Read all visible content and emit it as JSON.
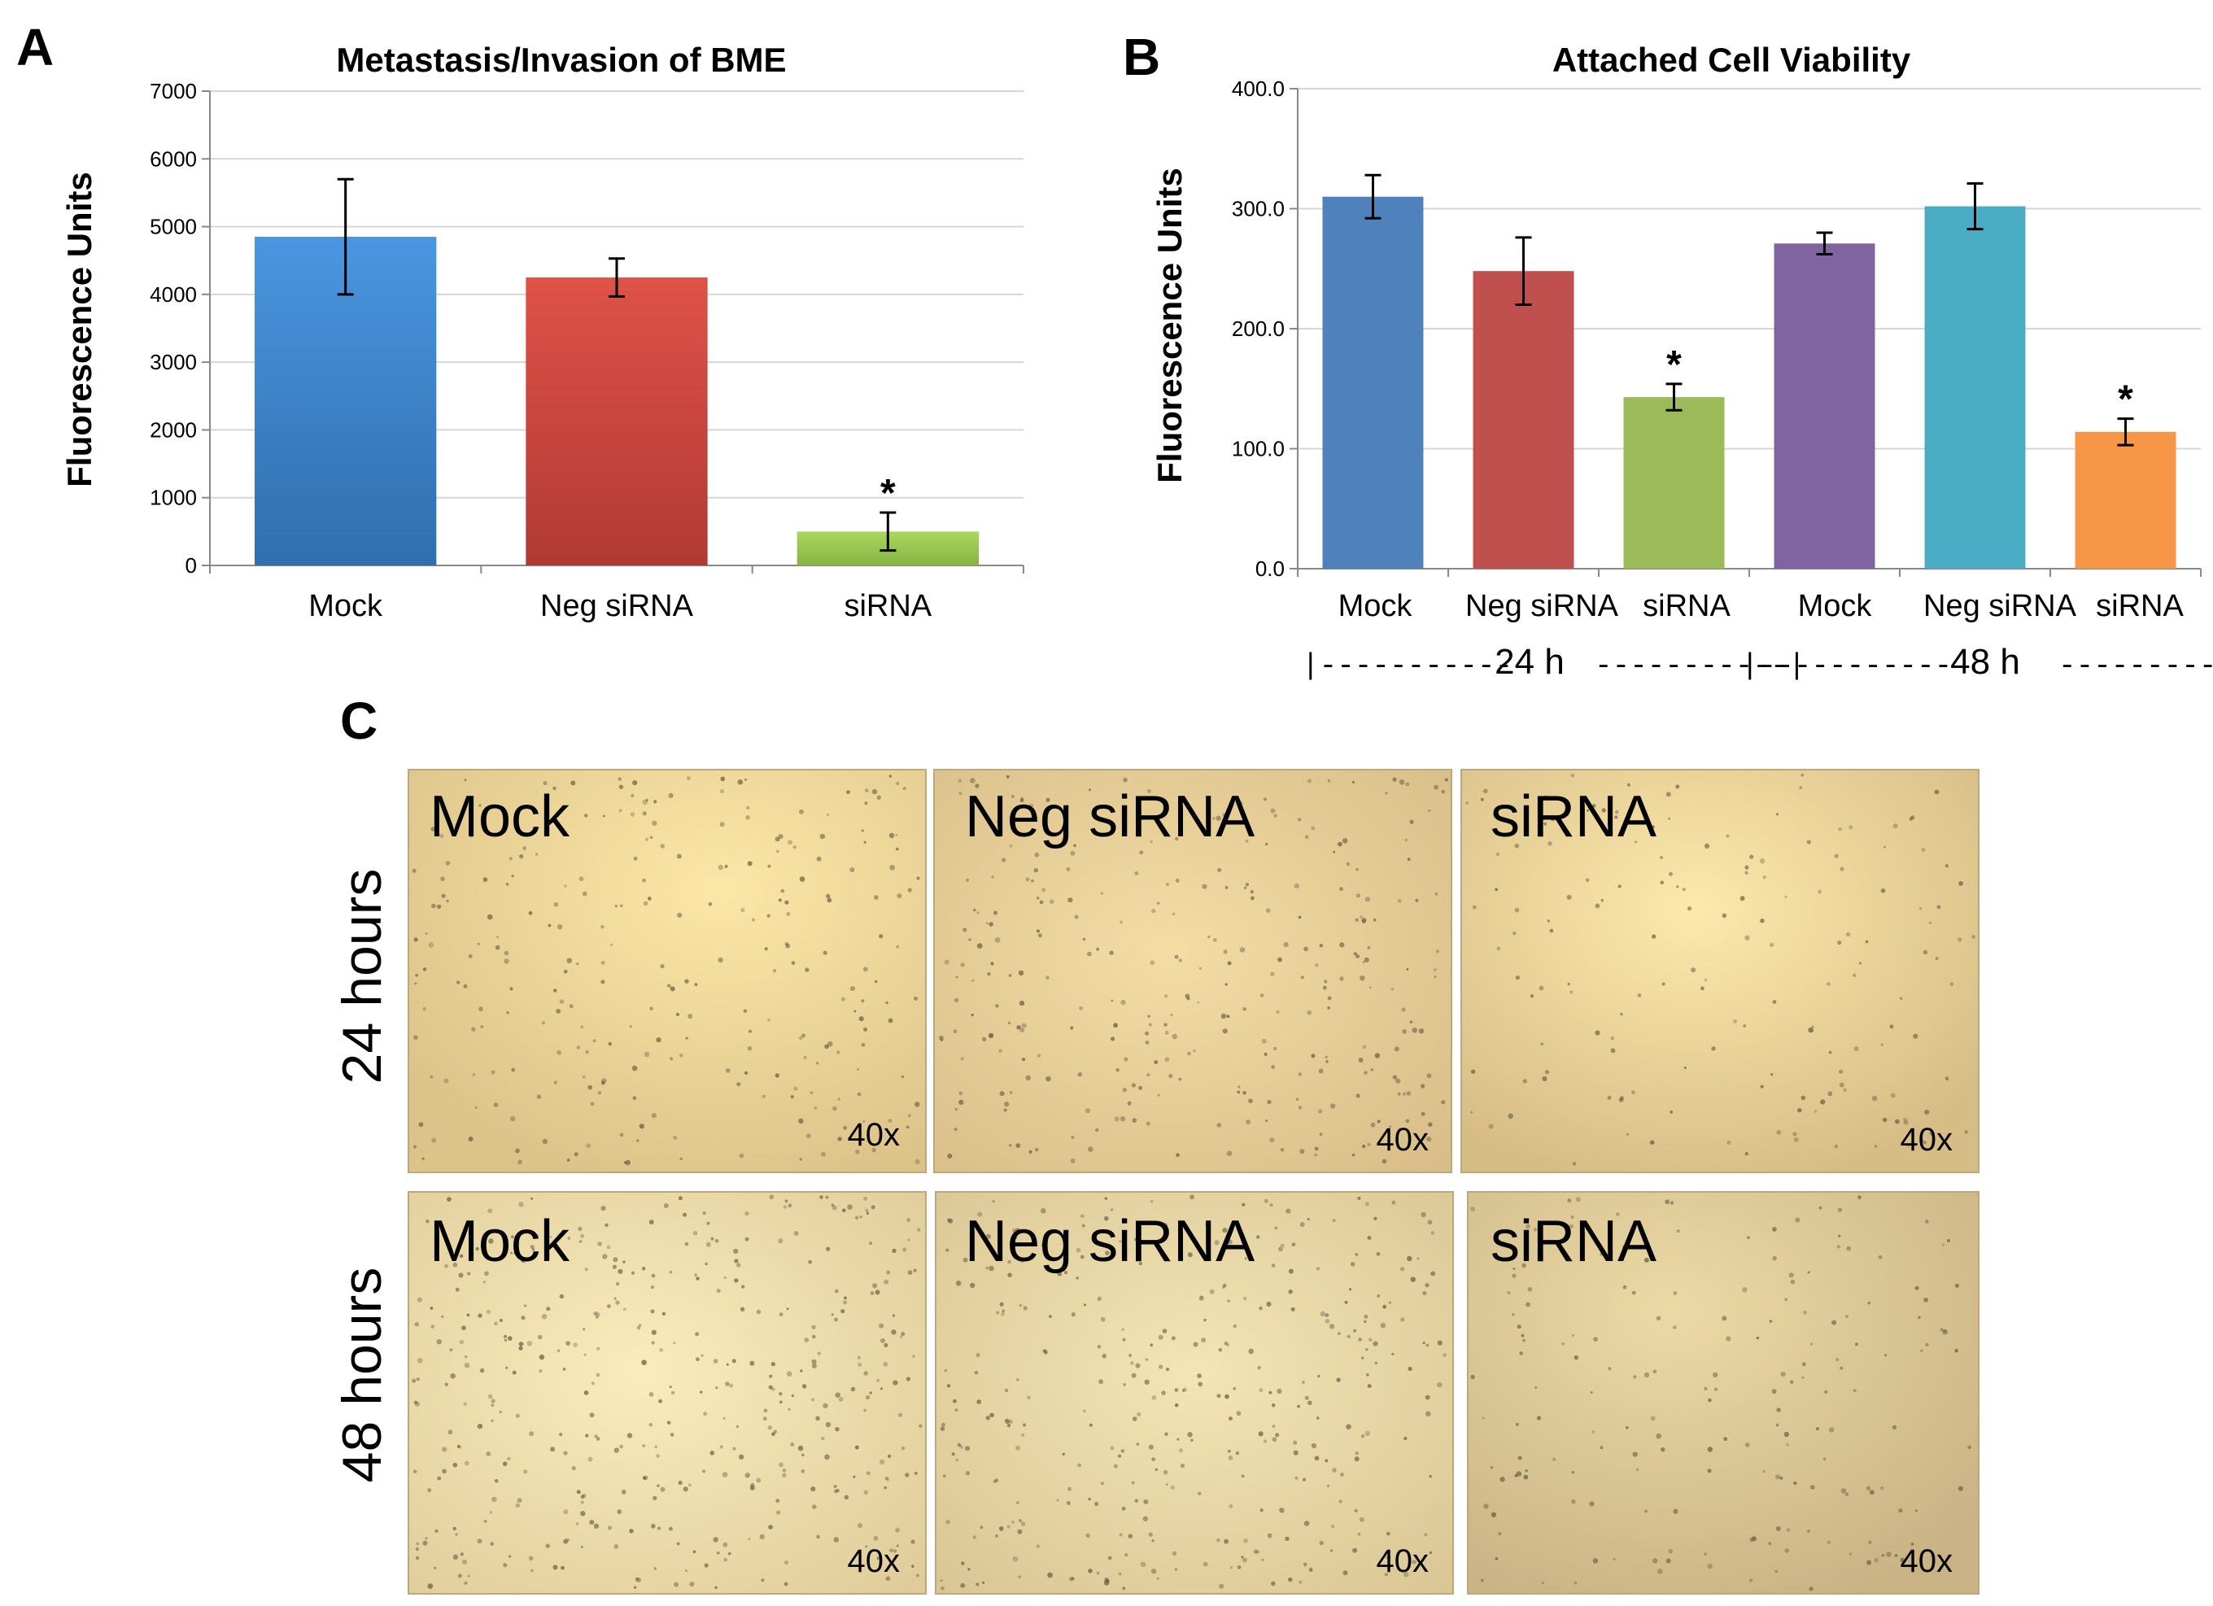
{
  "panels": {
    "a": "A",
    "b": "B",
    "c": "C"
  },
  "chart_data": [
    {
      "type": "bar",
      "title": "Metastasis/Invasion of BME",
      "xlabel": "",
      "ylabel": "Fluorescence  Units",
      "ylim": [
        0,
        7000
      ],
      "yticks": [
        "0",
        "1000",
        "2000",
        "3000",
        "4000",
        "5000",
        "6000",
        "7000"
      ],
      "grid": true,
      "categories": [
        "Mock",
        "Neg siRNA",
        "siRNA"
      ],
      "values": [
        4850,
        4250,
        500
      ],
      "errors": [
        850,
        280,
        280
      ],
      "significance": [
        "",
        "",
        "*"
      ],
      "colors": [
        "#3f86cc",
        "#cc4a44",
        "#9cc855"
      ]
    },
    {
      "type": "bar",
      "title": "Attached Cell Viability",
      "xlabel": "",
      "ylabel": "Fluorescence Units",
      "ylim": [
        0,
        400
      ],
      "yticks": [
        "0.0",
        "100.0",
        "200.0",
        "300.0",
        "400.0"
      ],
      "grid": true,
      "categories": [
        "Mock",
        "Neg siRNA",
        "siRNA",
        "Mock",
        "Neg siRNA",
        "siRNA"
      ],
      "values": [
        310,
        248,
        143,
        271,
        302,
        114
      ],
      "errors": [
        18,
        28,
        11,
        9,
        19,
        11
      ],
      "significance": [
        "",
        "",
        "*",
        "",
        "",
        "*"
      ],
      "colors": [
        "#4f81bd",
        "#c0504d",
        "#9bbb59",
        "#8064a2",
        "#4bacc6",
        "#f79646"
      ],
      "groups": [
        {
          "label": "24 h",
          "left_dashes": "|-----------",
          "right_dashes": "-----------|"
        },
        {
          "label": "48 h",
          "left_dashes": "|-----------",
          "right_dashes": "-----------|"
        }
      ]
    }
  ],
  "micrographs": {
    "row_labels": [
      "24 hours",
      "48 hours"
    ],
    "columns": [
      "Mock",
      "Neg siRNA",
      "siRNA"
    ],
    "magnification": "40x"
  }
}
